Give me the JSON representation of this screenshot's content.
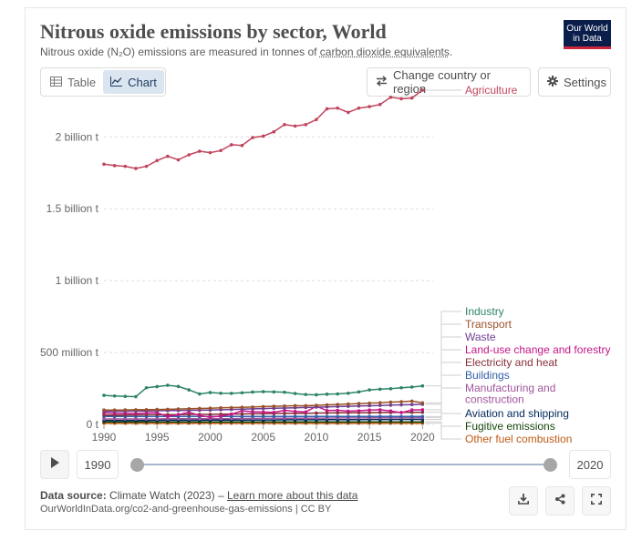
{
  "header": {
    "title": "Nitrous oxide emissions by sector, World",
    "subtitle_prefix": "Nitrous oxide (N₂O) emissions are measured in tonnes of ",
    "subtitle_link": "carbon dioxide equivalents",
    "subtitle_suffix": ".",
    "logo_line1": "Our World",
    "logo_line2": "in Data"
  },
  "toolbar": {
    "table_label": "Table",
    "chart_label": "Chart",
    "change_country_label": "Change country or region",
    "settings_label": "Settings"
  },
  "timeline": {
    "start_label": "1990",
    "end_label": "2020",
    "start_value": 1990,
    "end_value": 2020
  },
  "footer": {
    "source_label": "Data source:",
    "source_text": "Climate Watch (2023) – ",
    "source_link": "Learn more about this data",
    "url_text": "OurWorldInData.org/co2-and-greenhouse-gas-emissions | CC BY"
  },
  "icons": {
    "table": "table-icon",
    "chart": "chart-icon",
    "change": "arrows-swap-icon",
    "settings": "gear-icon",
    "play": "play-icon",
    "download": "download-icon",
    "share": "share-icon",
    "fullscreen": "fullscreen-icon"
  },
  "colors": {
    "accent_tab_bg": "#dbe5f0",
    "logo_bg": "#0b1e4b",
    "logo_bar": "#c9253b",
    "grid": "#dddddd"
  },
  "chart_data": {
    "type": "line",
    "title": "Nitrous oxide emissions by sector, World",
    "xlabel": "",
    "ylabel": "",
    "xlim": [
      1990,
      2021
    ],
    "ylim": [
      0,
      2350000000
    ],
    "grid": true,
    "legend_position": "right",
    "x_ticks": [
      1990,
      1995,
      2000,
      2005,
      2010,
      2015,
      2020
    ],
    "y_ticks": [
      {
        "value": 0,
        "label": "0 t"
      },
      {
        "value": 500000000,
        "label": "500 million t"
      },
      {
        "value": 1000000000,
        "label": "1 billion t"
      },
      {
        "value": 1500000000,
        "label": "1.5 billion t"
      },
      {
        "value": 2000000000,
        "label": "2 billion t"
      }
    ],
    "x": [
      1990,
      1991,
      1992,
      1993,
      1994,
      1995,
      1996,
      1997,
      1998,
      1999,
      2000,
      2001,
      2002,
      2003,
      2004,
      2005,
      2006,
      2007,
      2008,
      2009,
      2010,
      2011,
      2012,
      2013,
      2014,
      2015,
      2016,
      2017,
      2018,
      2019,
      2020
    ],
    "series": [
      {
        "name": "Agriculture",
        "color": "#c1445c",
        "values": [
          1810000000,
          1800000000,
          1795000000,
          1780000000,
          1795000000,
          1835000000,
          1865000000,
          1840000000,
          1875000000,
          1900000000,
          1890000000,
          1905000000,
          1945000000,
          1940000000,
          1995000000,
          2005000000,
          2035000000,
          2085000000,
          2075000000,
          2085000000,
          2120000000,
          2195000000,
          2200000000,
          2170000000,
          2200000000,
          2210000000,
          2225000000,
          2275000000,
          2265000000,
          2270000000,
          2325000000
        ]
      },
      {
        "name": "Industry",
        "color": "#2c8465",
        "values": [
          202000000,
          198000000,
          195000000,
          193000000,
          255000000,
          263000000,
          272000000,
          264000000,
          240000000,
          212000000,
          222000000,
          217000000,
          216000000,
          220000000,
          225000000,
          228000000,
          226000000,
          224000000,
          215000000,
          208000000,
          206000000,
          210000000,
          212000000,
          217000000,
          226000000,
          240000000,
          245000000,
          248000000,
          255000000,
          260000000,
          268000000
        ]
      },
      {
        "name": "Transport",
        "color": "#9a5129",
        "values": [
          100000000,
          100000000,
          101000000,
          102000000,
          103000000,
          104000000,
          105000000,
          107000000,
          109000000,
          111000000,
          113000000,
          115000000,
          117000000,
          119000000,
          121000000,
          124000000,
          126000000,
          128000000,
          130000000,
          130000000,
          133000000,
          136000000,
          139000000,
          142000000,
          145000000,
          148000000,
          151000000,
          155000000,
          158000000,
          162000000,
          150000000
        ]
      },
      {
        "name": "Waste",
        "color": "#6d3e91",
        "values": [
          90000000,
          91000000,
          92000000,
          93000000,
          94000000,
          95000000,
          96000000,
          97000000,
          98000000,
          99000000,
          100000000,
          102000000,
          104000000,
          106000000,
          108000000,
          110000000,
          112000000,
          114000000,
          116000000,
          118000000,
          120000000,
          122000000,
          124000000,
          126000000,
          128000000,
          130000000,
          132000000,
          134000000,
          136000000,
          138000000,
          140000000
        ]
      },
      {
        "name": "Land-use change and forestry",
        "color": "#c5168a",
        "values": [
          80000000,
          78000000,
          77000000,
          76000000,
          80000000,
          82000000,
          55000000,
          68000000,
          85000000,
          62000000,
          50000000,
          58000000,
          70000000,
          95000000,
          88000000,
          86000000,
          84000000,
          98000000,
          90000000,
          87000000,
          126000000,
          96000000,
          98000000,
          92000000,
          95000000,
          100000000,
          102000000,
          94000000,
          82000000,
          101000000,
          102000000
        ]
      },
      {
        "name": "Electricity and heat",
        "color": "#883039",
        "values": [
          65000000,
          65500000,
          66000000,
          66500000,
          67000000,
          67500000,
          68000000,
          68500000,
          69000000,
          69500000,
          70000000,
          71000000,
          72000000,
          73000000,
          74000000,
          75000000,
          76000000,
          77000000,
          78000000,
          78000000,
          79000000,
          80000000,
          81000000,
          81000000,
          82000000,
          82000000,
          83000000,
          83000000,
          84000000,
          84000000,
          85000000
        ]
      },
      {
        "name": "Buildings",
        "color": "#3360a9",
        "values": [
          55000000,
          55000000,
          55000000,
          55000000,
          55000000,
          55000000,
          55000000,
          55000000,
          55000000,
          55000000,
          55000000,
          55000000,
          55000000,
          55000000,
          55000000,
          55000000,
          55000000,
          55000000,
          55000000,
          55000000,
          55000000,
          55000000,
          55000000,
          55000000,
          55000000,
          55000000,
          55000000,
          55000000,
          55000000,
          55000000,
          55000000
        ]
      },
      {
        "name": "Manufacturing and construction",
        "color": "#a2559c",
        "values": [
          38000000,
          38000000,
          38000000,
          38000000,
          38000000,
          38000000,
          39000000,
          39000000,
          39000000,
          39000000,
          40000000,
          40000000,
          40000000,
          41000000,
          41000000,
          42000000,
          42000000,
          43000000,
          43000000,
          43000000,
          44000000,
          44000000,
          45000000,
          45000000,
          45000000,
          46000000,
          46000000,
          46000000,
          47000000,
          47000000,
          47000000
        ]
      },
      {
        "name": "Aviation and shipping",
        "color": "#00295b",
        "values": [
          28000000,
          28000000,
          28000000,
          28000000,
          28000000,
          29000000,
          29000000,
          29000000,
          29000000,
          29000000,
          30000000,
          30000000,
          30000000,
          30000000,
          31000000,
          31000000,
          31000000,
          32000000,
          32000000,
          32000000,
          32000000,
          33000000,
          33000000,
          33000000,
          33000000,
          34000000,
          34000000,
          34000000,
          35000000,
          35000000,
          35000000
        ]
      },
      {
        "name": "Fugitive emissions",
        "color": "#18470f",
        "values": [
          18000000,
          18000000,
          18000000,
          18000000,
          18000000,
          18000000,
          18000000,
          18000000,
          18000000,
          18000000,
          18000000,
          18000000,
          18000000,
          18000000,
          18000000,
          18000000,
          18000000,
          18000000,
          18000000,
          18000000,
          18000000,
          18000000,
          18000000,
          18000000,
          18000000,
          18000000,
          18000000,
          18000000,
          18000000,
          18000000,
          18000000
        ]
      },
      {
        "name": "Other fuel combustion",
        "color": "#be5915",
        "values": [
          8000000,
          8000000,
          8000000,
          8000000,
          8000000,
          8000000,
          8000000,
          8000000,
          8000000,
          8000000,
          8000000,
          8000000,
          8000000,
          8000000,
          8000000,
          8000000,
          8000000,
          8000000,
          8000000,
          8000000,
          8000000,
          8000000,
          8000000,
          8000000,
          8000000,
          8000000,
          8000000,
          8000000,
          8000000,
          8000000,
          8000000
        ]
      }
    ]
  }
}
